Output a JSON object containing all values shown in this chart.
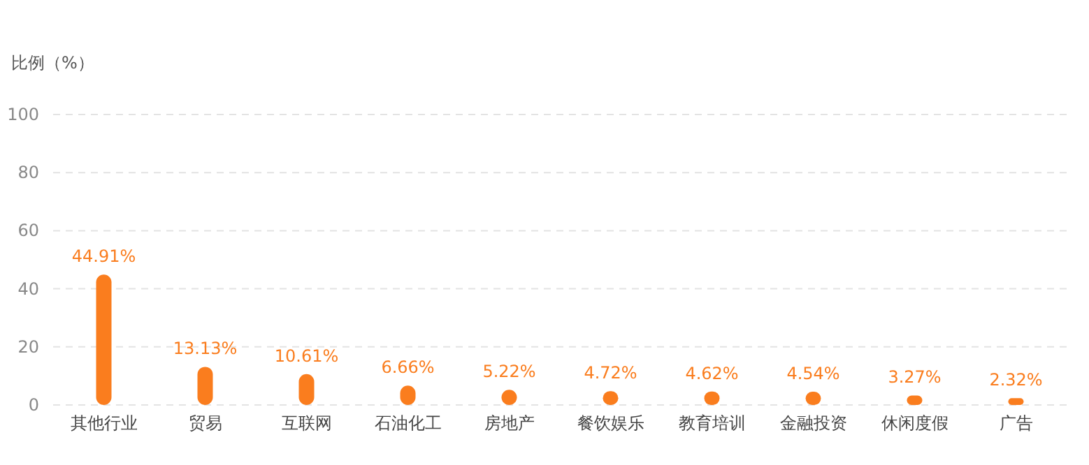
{
  "chart_data": {
    "type": "bar",
    "ylabel": "比例（%）",
    "categories": [
      "其他行业",
      "贸易",
      "互联网",
      "石油化工",
      "房地产",
      "餐饮娱乐",
      "教育培训",
      "金融投资",
      "休闲度假",
      "广告"
    ],
    "values": [
      44.91,
      13.13,
      10.61,
      6.66,
      5.22,
      4.72,
      4.62,
      4.54,
      3.27,
      2.32
    ],
    "value_labels": [
      "44.91%",
      "13.13%",
      "10.61%",
      "6.66%",
      "5.22%",
      "4.72%",
      "4.62%",
      "4.54%",
      "3.27%",
      "2.32%"
    ],
    "color": "#fa7d1e",
    "ylim": [
      0,
      100
    ],
    "yticks": [
      0,
      20,
      40,
      60,
      80,
      100
    ],
    "grid": "y"
  }
}
